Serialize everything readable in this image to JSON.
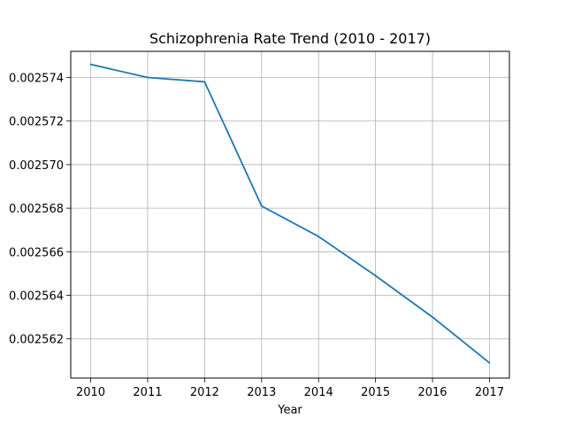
{
  "chart_data": {
    "type": "line",
    "title": "Schizophrenia Rate Trend (2010 - 2017)",
    "xlabel": "Year",
    "ylabel": "",
    "x": [
      2010,
      2011,
      2012,
      2013,
      2014,
      2015,
      2016,
      2017
    ],
    "series": [
      {
        "values": [
          0.0025746,
          0.002574,
          0.0025738,
          0.0025681,
          0.0025667,
          0.0025649,
          0.002563,
          0.0025609
        ],
        "color": "#1f77b4"
      }
    ],
    "x_ticks": [
      "2010",
      "2011",
      "2012",
      "2013",
      "2014",
      "2015",
      "2016",
      "2017"
    ],
    "y_ticks": [
      {
        "value": 0.002562,
        "label": "0.002562"
      },
      {
        "value": 0.002564,
        "label": "0.002564"
      },
      {
        "value": 0.002566,
        "label": "0.002566"
      },
      {
        "value": 0.002568,
        "label": "0.002568"
      },
      {
        "value": 0.00257,
        "label": "0.002570"
      },
      {
        "value": 0.002572,
        "label": "0.002572"
      },
      {
        "value": 0.002574,
        "label": "0.002574"
      }
    ],
    "xlim": [
      2009.65,
      2017.35
    ],
    "ylim": [
      0.0025602,
      0.0025752
    ],
    "grid": true,
    "legend": "none"
  }
}
